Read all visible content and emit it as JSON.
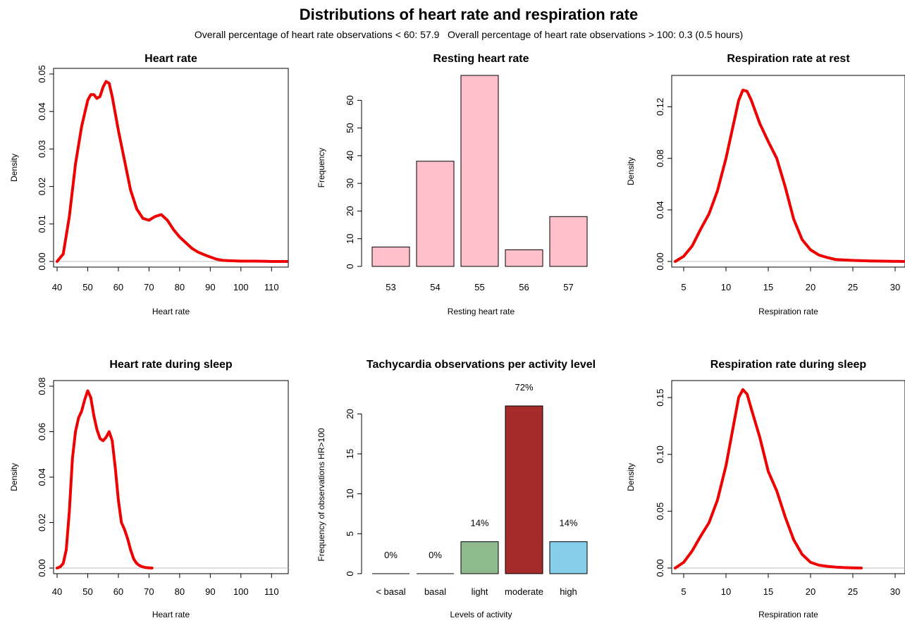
{
  "title": "Distributions of heart rate and respiration rate",
  "subtitle": "Overall percentage of heart rate observations < 60: 57.9   Overall percentage of heart rate observations > 100: 0.3 (0.5 hours)",
  "chart_data": [
    {
      "id": "hr",
      "type": "line",
      "title": "Heart rate",
      "xlabel": "Heart rate",
      "ylabel": "Density",
      "xlim": [
        40,
        115
      ],
      "ylim": [
        0,
        0.05
      ],
      "xticks": [
        40,
        50,
        60,
        70,
        80,
        90,
        100,
        110
      ],
      "yticks": [
        0.0,
        0.01,
        0.02,
        0.03,
        0.04,
        0.05
      ],
      "ytick_labels": [
        "0.00",
        "0.01",
        "0.02",
        "0.03",
        "0.04",
        "0.05"
      ],
      "color": "#ee0000",
      "x": [
        40,
        42,
        44,
        46,
        48,
        50,
        51,
        52,
        53,
        54,
        55,
        56,
        57,
        58,
        60,
        62,
        64,
        66,
        68,
        70,
        71,
        72,
        74,
        76,
        78,
        80,
        82,
        84,
        86,
        88,
        90,
        92,
        94,
        96,
        100,
        105,
        110,
        115
      ],
      "y": [
        0.0,
        0.002,
        0.012,
        0.026,
        0.036,
        0.043,
        0.0445,
        0.0445,
        0.0435,
        0.044,
        0.0465,
        0.048,
        0.0475,
        0.044,
        0.035,
        0.027,
        0.019,
        0.014,
        0.0115,
        0.011,
        0.0115,
        0.012,
        0.0125,
        0.011,
        0.0085,
        0.0065,
        0.005,
        0.0035,
        0.0025,
        0.0018,
        0.0012,
        0.0006,
        0.0003,
        0.0002,
        0.0001,
        0.0001,
        0.0,
        0.0
      ]
    },
    {
      "id": "rhr",
      "type": "bar",
      "title": "Resting heart rate",
      "xlabel": "Resting heart rate",
      "ylabel": "Frequency",
      "categories": [
        "53",
        "54",
        "55",
        "56",
        "57"
      ],
      "values": [
        7,
        38,
        69,
        6,
        18
      ],
      "ylim": [
        0,
        69
      ],
      "yticks": [
        0,
        10,
        20,
        30,
        40,
        50,
        60
      ],
      "color": "#ffc0cb"
    },
    {
      "id": "rr",
      "type": "line",
      "title": "Respiration rate at rest",
      "xlabel": "Respiration rate",
      "ylabel": "Density",
      "xlim": [
        4,
        31
      ],
      "ylim": [
        0,
        0.14
      ],
      "xticks": [
        5,
        10,
        15,
        20,
        25,
        30
      ],
      "yticks": [
        0.0,
        0.04,
        0.08,
        0.12
      ],
      "ytick_labels": [
        "0.00",
        "0.04",
        "0.08",
        "0.12"
      ],
      "color": "#ee0000",
      "x": [
        4,
        5,
        6,
        7,
        8,
        9,
        10,
        11,
        11.5,
        12,
        12.5,
        13,
        14,
        15,
        16,
        17,
        18,
        19,
        20,
        21,
        22,
        23,
        25,
        27,
        29,
        31
      ],
      "y": [
        0.0,
        0.004,
        0.012,
        0.025,
        0.037,
        0.055,
        0.08,
        0.11,
        0.125,
        0.133,
        0.132,
        0.125,
        0.107,
        0.093,
        0.08,
        0.058,
        0.033,
        0.017,
        0.009,
        0.005,
        0.003,
        0.0015,
        0.0008,
        0.0004,
        0.0002,
        0.0
      ]
    },
    {
      "id": "hrs",
      "type": "line",
      "title": "Heart rate during sleep",
      "xlabel": "Heart rate",
      "ylabel": "Density",
      "xlim": [
        40,
        115
      ],
      "ylim": [
        0,
        0.08
      ],
      "xticks": [
        40,
        50,
        60,
        70,
        80,
        90,
        100,
        110
      ],
      "yticks": [
        0.0,
        0.02,
        0.04,
        0.06,
        0.08
      ],
      "ytick_labels": [
        "0.00",
        "0.02",
        "0.04",
        "0.06",
        "0.08"
      ],
      "color": "#ee0000",
      "x": [
        40,
        41,
        42,
        43,
        44,
        45,
        46,
        47,
        48,
        49,
        50,
        51,
        52,
        53,
        54,
        55,
        56,
        57,
        58,
        59,
        60,
        61,
        62,
        63,
        64,
        65,
        66,
        67,
        68,
        69,
        70,
        71
      ],
      "y": [
        0.0,
        0.0005,
        0.002,
        0.008,
        0.025,
        0.048,
        0.06,
        0.066,
        0.069,
        0.074,
        0.078,
        0.075,
        0.067,
        0.061,
        0.057,
        0.056,
        0.0575,
        0.06,
        0.056,
        0.044,
        0.03,
        0.02,
        0.017,
        0.013,
        0.008,
        0.004,
        0.002,
        0.001,
        0.0005,
        0.0002,
        0.0001,
        0.0
      ]
    },
    {
      "id": "tachy",
      "type": "bar",
      "title": "Tachycardia observations per activity level",
      "xlabel": "Levels of activity",
      "ylabel": "Frequency of observations HR>100",
      "categories": [
        "< basal",
        "basal",
        "light",
        "moderate",
        "high"
      ],
      "values": [
        0,
        0,
        4,
        21,
        4
      ],
      "data_labels": [
        "0%",
        "0%",
        "14%",
        "72%",
        "14%"
      ],
      "colors": [
        "#ffffff",
        "#ffffff",
        "#8fbc8f",
        "#a52a2a",
        "#87ceeb"
      ],
      "ylim": [
        0,
        21
      ],
      "yticks": [
        0,
        5,
        10,
        15,
        20
      ]
    },
    {
      "id": "rrs",
      "type": "line",
      "title": "Respiration rate during sleep",
      "xlabel": "Respiration rate",
      "ylabel": "Density",
      "xlim": [
        4,
        31
      ],
      "ylim": [
        0,
        0.16
      ],
      "xticks": [
        5,
        10,
        15,
        20,
        25,
        30
      ],
      "yticks": [
        0.0,
        0.05,
        0.1,
        0.15
      ],
      "ytick_labels": [
        "0.00",
        "0.05",
        "0.10",
        "0.15"
      ],
      "color": "#ee0000",
      "x": [
        4,
        5,
        6,
        7,
        8,
        9,
        10,
        11,
        11.5,
        12,
        12.5,
        13,
        14,
        15,
        16,
        17,
        18,
        19,
        20,
        21,
        22,
        23,
        24,
        25,
        26
      ],
      "y": [
        0.0,
        0.005,
        0.015,
        0.028,
        0.04,
        0.06,
        0.09,
        0.13,
        0.15,
        0.157,
        0.153,
        0.14,
        0.115,
        0.085,
        0.068,
        0.045,
        0.025,
        0.012,
        0.005,
        0.0025,
        0.0015,
        0.0008,
        0.0004,
        0.0002,
        0.0
      ]
    }
  ]
}
